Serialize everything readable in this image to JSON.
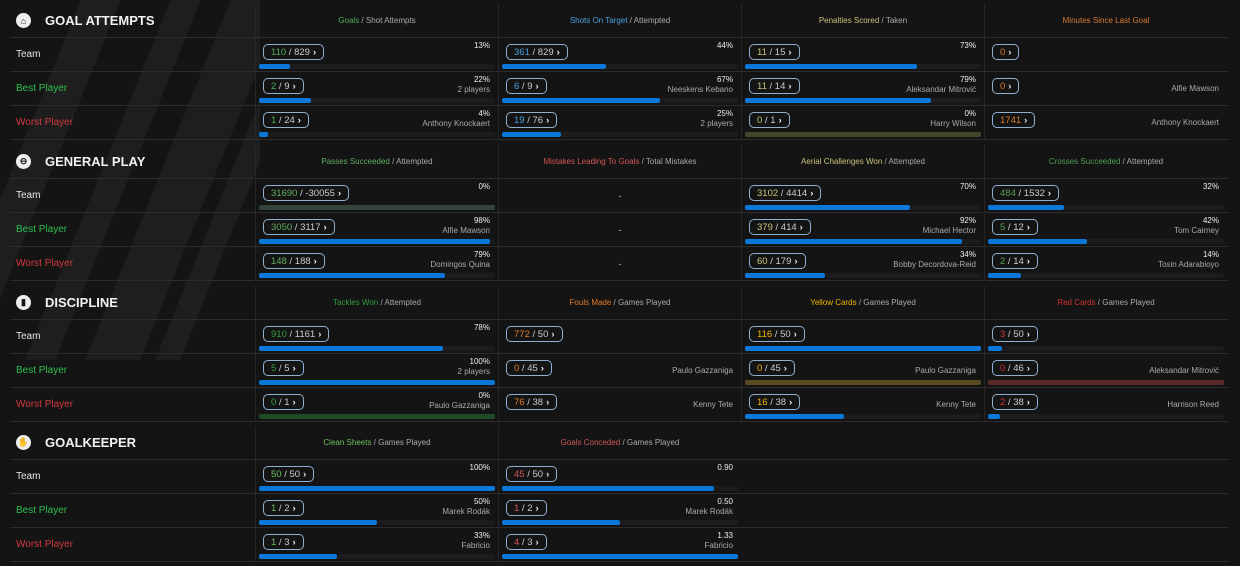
{
  "colors": {
    "best": "#2fbf4f",
    "worst": "#d2393f",
    "team": "#e6e6e6",
    "bar": "#0a78d8"
  },
  "row_labels": [
    "Team",
    "Best Player",
    "Worst Player"
  ],
  "sections": [
    {
      "title": "GOAL ATTEMPTS",
      "icon": "goal-icon",
      "glyph": "⌂",
      "columns": [
        {
          "accent": "Goals",
          "rest": " / Shot Attempts",
          "color": "#4fae5a",
          "track": "#2f3f2f"
        },
        {
          "accent": "Shots On Target",
          "rest": " / Attempted",
          "color": "#4aa0dc",
          "track": "#22384a"
        },
        {
          "accent": "Penalties Scored",
          "rest": " / Taken",
          "color": "#c9c27a",
          "track": "#45452c"
        },
        {
          "accent": "Minutes Since Last Goal",
          "rest": "",
          "color": "#d87a32",
          "track": "#4a3020"
        }
      ],
      "rows": [
        [
          {
            "num": "110",
            "den": "829",
            "pct": "13%",
            "fill": 0.13
          },
          {
            "num": "361",
            "den": "829",
            "pct": "44%",
            "fill": 0.44
          },
          {
            "num": "11",
            "den": "15",
            "pct": "73%",
            "fill": 0.73
          },
          {
            "num": "0",
            "nobar": true
          }
        ],
        [
          {
            "num": "2",
            "den": "9",
            "pct": "22%",
            "player": "2 players",
            "fill": 0.22
          },
          {
            "num": "6",
            "den": "9",
            "pct": "67%",
            "player": "Neeskens Kebano",
            "fill": 0.67
          },
          {
            "num": "11",
            "den": "14",
            "pct": "79%",
            "player": "Aleksandar Mitrović",
            "fill": 0.79
          },
          {
            "num": "0",
            "player": "Alfie Mawson",
            "nobar": true
          }
        ],
        [
          {
            "num": "1",
            "den": "24",
            "pct": "4%",
            "player": "Anthony Knockaert",
            "fill": 0.04
          },
          {
            "num": "19",
            "den": "76",
            "pct": "25%",
            "player": "2 players",
            "fill": 0.25
          },
          {
            "num": "0",
            "den": "1",
            "pct": "0%",
            "player": "Harry Wilson",
            "fill": 0
          },
          {
            "num": "1741",
            "player": "Anthony Knockaert",
            "nobar": true
          }
        ]
      ]
    },
    {
      "title": "GENERAL PLAY",
      "icon": "ball-icon",
      "glyph": "⊖",
      "columns": [
        {
          "accent": "Passes Succeeded",
          "rest": " / Attempted",
          "color": "#5fae5f",
          "track": "#34443a"
        },
        {
          "accent": "Mistakes Leading To Goals",
          "rest": " / Total Mistakes",
          "color": "#d25555",
          "track": "#4a2a2a"
        },
        {
          "accent": "Aerial Challenges Won",
          "rest": " / Attempted",
          "color": "#c9c47c",
          "track": "#45452c"
        },
        {
          "accent": "Crosses Succeeded",
          "rest": " / Attempted",
          "color": "#4f9f52",
          "track": "#2a402c"
        }
      ],
      "rows": [
        [
          {
            "num": "31690",
            "den": "-30055",
            "pct": "0%",
            "fill": 0
          },
          {
            "dash": "-"
          },
          {
            "num": "3102",
            "den": "4414",
            "pct": "70%",
            "fill": 0.7
          },
          {
            "num": "484",
            "den": "1532",
            "pct": "32%",
            "fill": 0.32
          }
        ],
        [
          {
            "num": "3050",
            "den": "3117",
            "pct": "98%",
            "player": "Alfie Mawson",
            "fill": 0.98
          },
          {
            "dash": "-"
          },
          {
            "num": "379",
            "den": "414",
            "pct": "92%",
            "player": "Michael Hector",
            "fill": 0.92
          },
          {
            "num": "5",
            "den": "12",
            "pct": "42%",
            "player": "Tom Cairney",
            "fill": 0.42
          }
        ],
        [
          {
            "num": "148",
            "den": "188",
            "pct": "79%",
            "player": "Domingos Quina",
            "fill": 0.79
          },
          {
            "dash": "-"
          },
          {
            "num": "60",
            "den": "179",
            "pct": "34%",
            "player": "Bobby Decordova-Reid",
            "fill": 0.34
          },
          {
            "num": "2",
            "den": "14",
            "pct": "14%",
            "player": "Tosin Adarabioyo",
            "fill": 0.14
          }
        ]
      ]
    },
    {
      "title": "DISCIPLINE",
      "icon": "card-icon",
      "glyph": "▮",
      "columns": [
        {
          "accent": "Tackles Won",
          "rest": " / Attempted",
          "color": "#2f9f3f",
          "track": "#1f4a26"
        },
        {
          "accent": "Fouls Made",
          "rest": " / Games Played",
          "color": "#e07a2a",
          "track": "#4a3020"
        },
        {
          "accent": "Yellow Cards",
          "rest": " / Games Played",
          "color": "#f0b400",
          "track": "#5a4a22"
        },
        {
          "accent": "Red Cards",
          "rest": " / Games Played",
          "color": "#d23232",
          "track": "#5a2a2a"
        }
      ],
      "rows": [
        [
          {
            "num": "910",
            "den": "1161",
            "pct": "78%",
            "fill": 0.78
          },
          {
            "num": "772",
            "den": "50",
            "nobar": true
          },
          {
            "num": "116",
            "den": "50",
            "fill": 1
          },
          {
            "num": "3",
            "den": "50",
            "fill": 0.06
          }
        ],
        [
          {
            "num": "5",
            "den": "5",
            "pct": "100%",
            "player": "2 players",
            "fill": 1
          },
          {
            "num": "0",
            "den": "45",
            "player": "Paulo Gazzaniga",
            "nobar": true
          },
          {
            "num": "0",
            "den": "45",
            "player": "Paulo Gazzaniga",
            "fill": 0
          },
          {
            "num": "0",
            "den": "46",
            "player": "Aleksandar Mitrović",
            "fill": 0
          }
        ],
        [
          {
            "num": "0",
            "den": "1",
            "pct": "0%",
            "player": "Paulo Gazzaniga",
            "fill": 0
          },
          {
            "num": "76",
            "den": "38",
            "player": "Kenny Tete",
            "nobar": true
          },
          {
            "num": "16",
            "den": "38",
            "player": "Kenny Tete",
            "fill": 0.42
          },
          {
            "num": "2",
            "den": "38",
            "player": "Harrison Reed",
            "fill": 0.05
          }
        ]
      ]
    },
    {
      "title": "GOALKEEPER",
      "icon": "glove-icon",
      "glyph": "✋",
      "columns": [
        {
          "accent": "Clean Sheets",
          "rest": " / Games Played",
          "color": "#6fbf5f",
          "track": "#2f4a2f"
        },
        {
          "accent": "Goals Conceded",
          "rest": " / Games Played",
          "color": "#d25555",
          "track": "#4a2a2a"
        }
      ],
      "rows": [
        [
          {
            "num": "50",
            "den": "50",
            "pct": "100%",
            "fill": 1
          },
          {
            "num": "45",
            "den": "50",
            "pct": "0.90",
            "fill": 0.9
          }
        ],
        [
          {
            "num": "1",
            "den": "2",
            "pct": "50%",
            "player": "Marek Rodák",
            "fill": 0.5
          },
          {
            "num": "1",
            "den": "2",
            "pct": "0.50",
            "player": "Marek Rodák",
            "fill": 0.5
          }
        ],
        [
          {
            "num": "1",
            "den": "3",
            "pct": "33%",
            "player": "Fabricio",
            "fill": 0.33
          },
          {
            "num": "4",
            "den": "3",
            "pct": "1.33",
            "player": "Fabricio",
            "fill": 1
          }
        ]
      ]
    }
  ]
}
